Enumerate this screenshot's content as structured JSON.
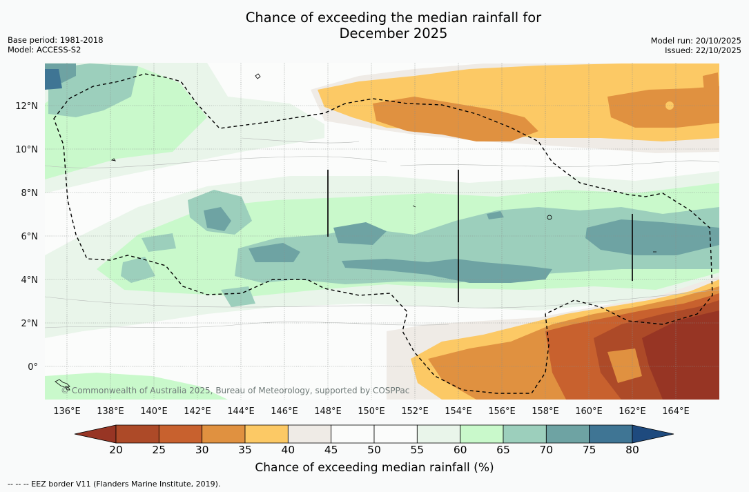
{
  "title": {
    "line1": "Chance of exceeding the median rainfall for",
    "line2": "December 2025"
  },
  "meta": {
    "base_period": "Base period: 1981-2018",
    "model": "Model: ACCESS-S2",
    "model_run": "Model run: 20/10/2025",
    "issued": "Issued: 22/10/2025"
  },
  "map": {
    "attribution": "© Commonwealth of Australia 2025, Bureau of Meteorology, supported by COSPPac",
    "lon_labels": [
      "136°E",
      "138°E",
      "140°E",
      "142°E",
      "144°E",
      "146°E",
      "148°E",
      "150°E",
      "152°E",
      "154°E",
      "156°E",
      "158°E",
      "160°E",
      "162°E",
      "164°E"
    ],
    "lat_labels": [
      "12°N",
      "10°N",
      "8°N",
      "6°N",
      "4°N",
      "2°N",
      "0°"
    ],
    "extent": {
      "lon_min": 135,
      "lon_max": 166,
      "lat_min": -1.5,
      "lat_max": 14
    }
  },
  "colorbar": {
    "ticks": [
      "20",
      "25",
      "30",
      "35",
      "40",
      "45",
      "50",
      "55",
      "60",
      "65",
      "70",
      "75",
      "80"
    ],
    "colors": [
      "#ad4a28",
      "#c8612e",
      "#e09140",
      "#fcc965",
      "#efebe6",
      "#fbfcfb",
      "#fbfcfb",
      "#e9f5ea",
      "#c9f9cb",
      "#9ccfbc",
      "#6ea3a3",
      "#3f7594"
    ],
    "under_color": "#973524",
    "over_color": "#1e4a7e",
    "label": "Chance of exceeding median rainfall (%)"
  },
  "footnote": "-- -- -- EEZ border V11 (Flanders Marine Institute, 2019)."
}
